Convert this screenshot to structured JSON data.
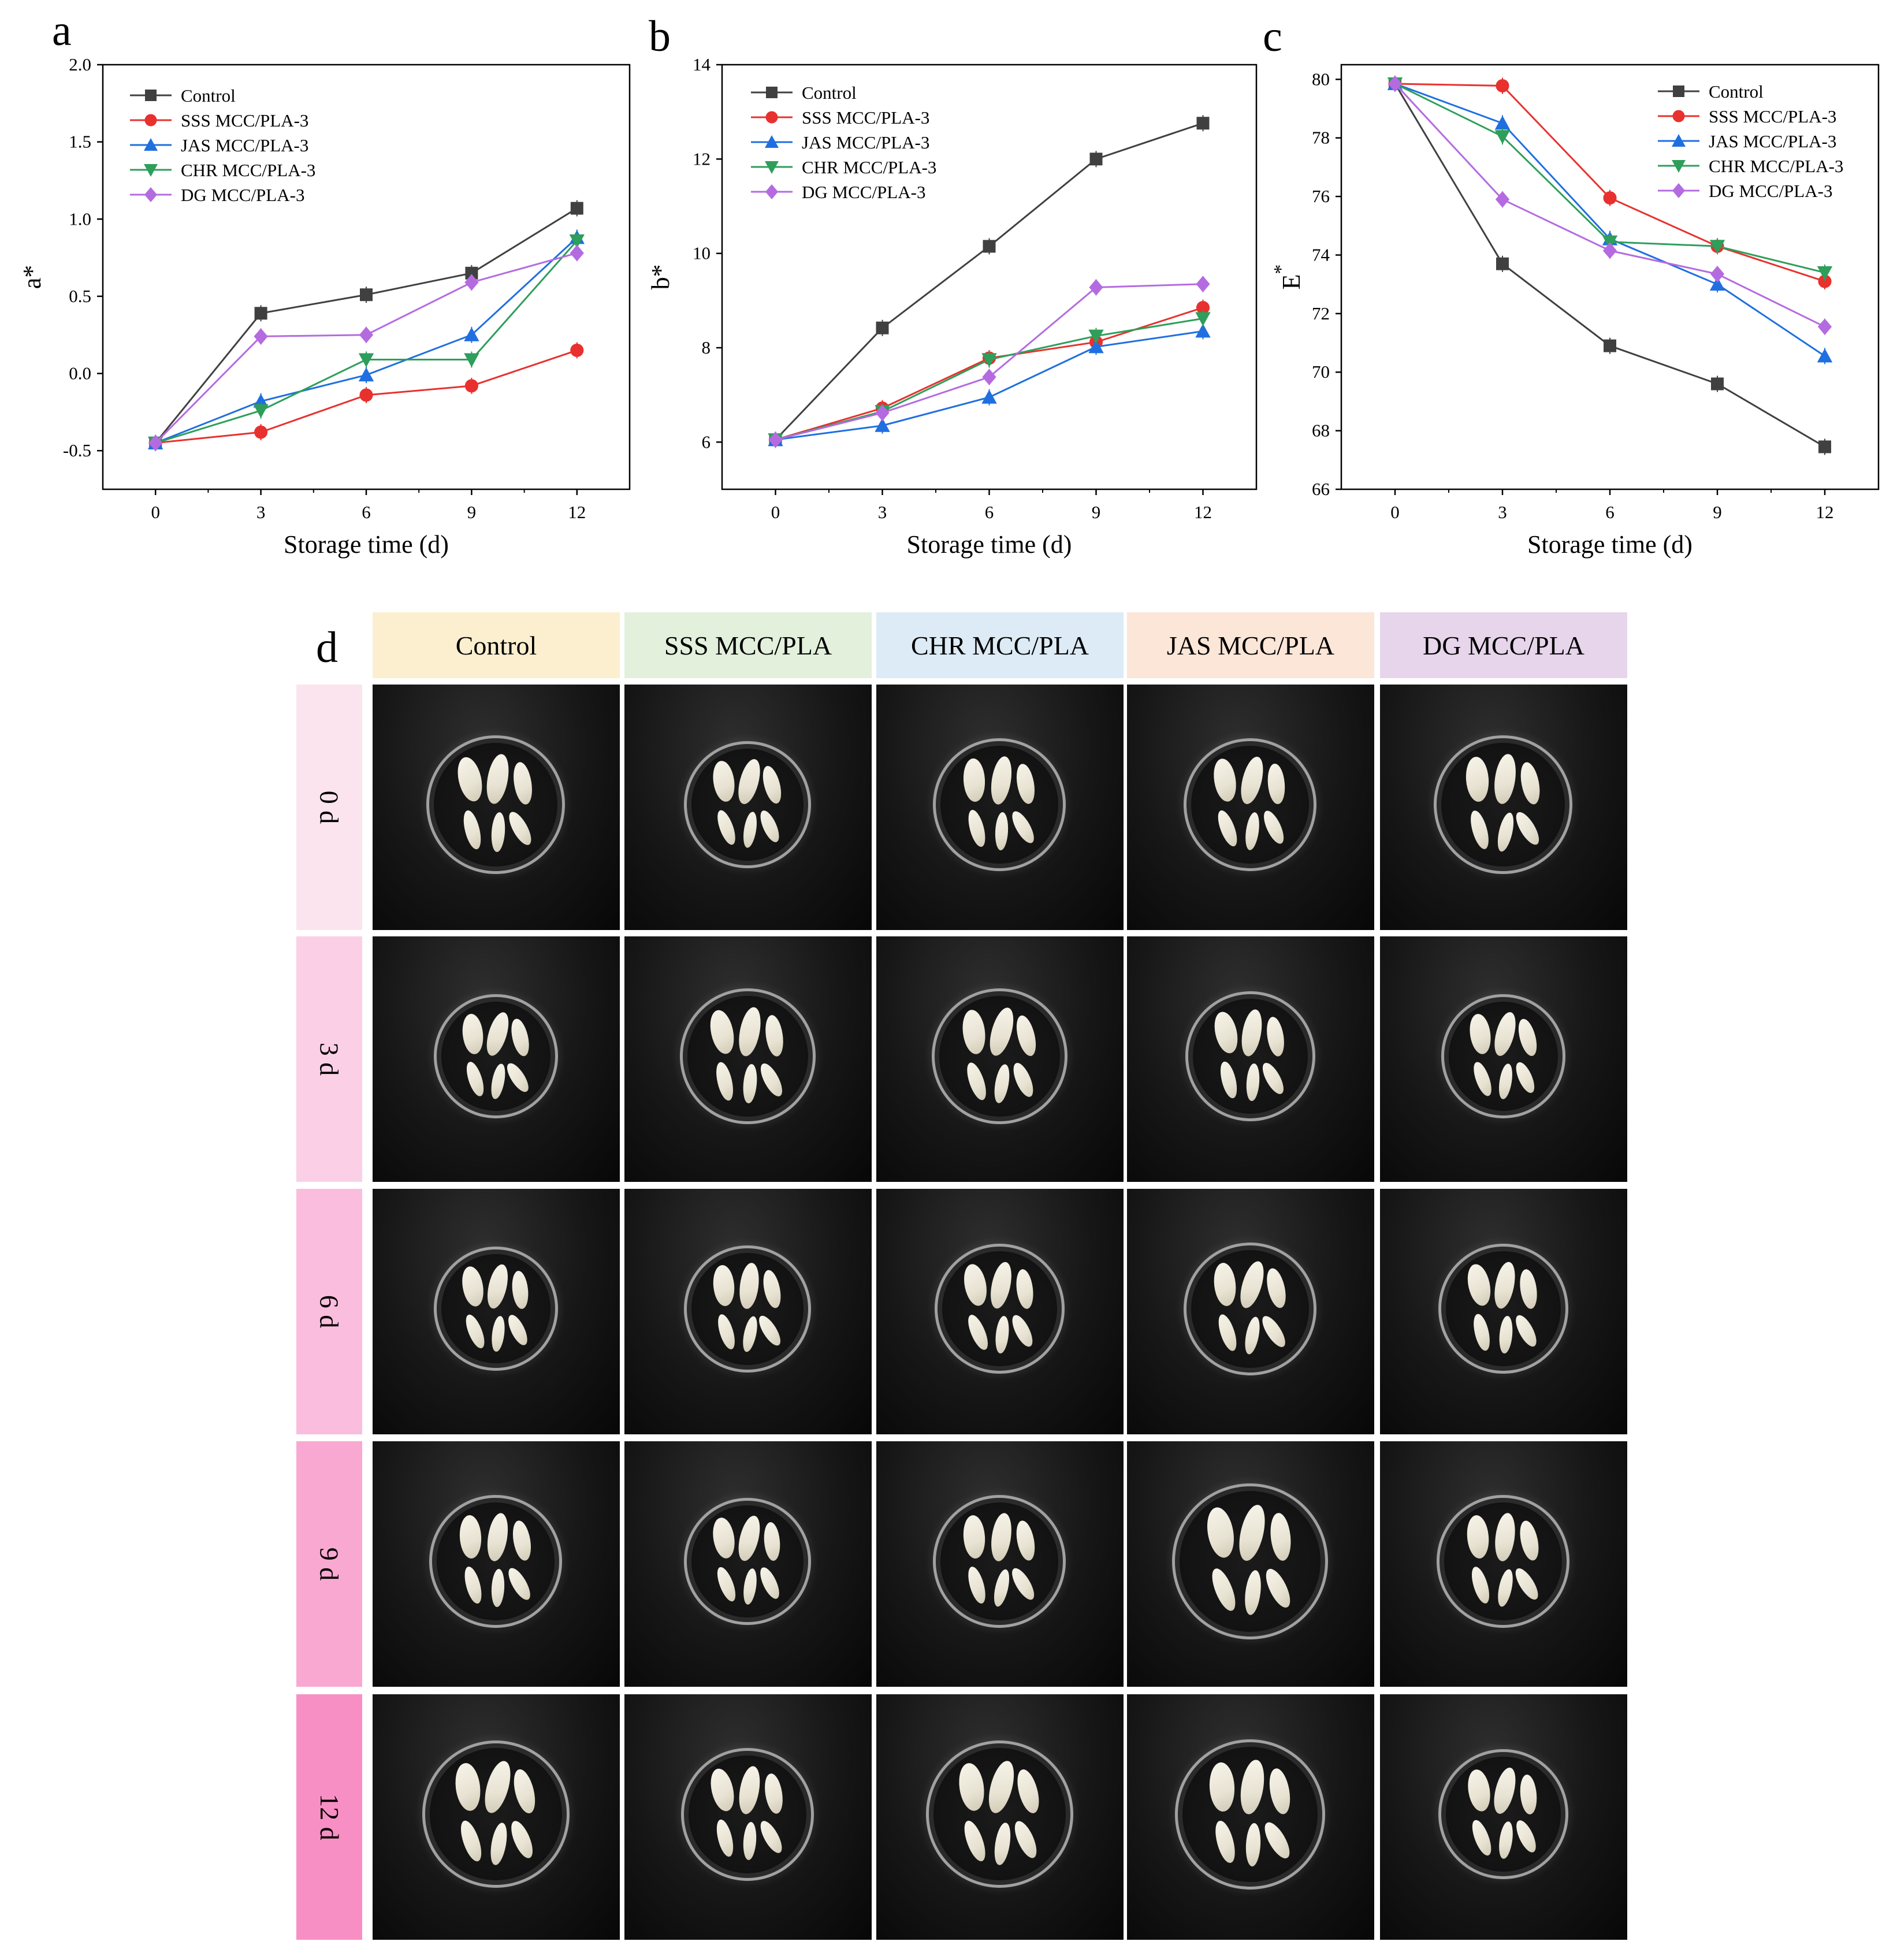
{
  "panels": {
    "a": "a",
    "b": "b",
    "c": "c",
    "d": "d"
  },
  "series_styles": [
    {
      "name": "Control",
      "color": "#404040",
      "marker": "square"
    },
    {
      "name": "SSS MCC/PLA-3",
      "color": "#e8312e",
      "marker": "circle"
    },
    {
      "name": "JAS MCC/PLA-3",
      "color": "#1f6fe0",
      "marker": "triangle-up"
    },
    {
      "name": "CHR MCC/PLA-3",
      "color": "#2e9e5b",
      "marker": "triangle-down"
    },
    {
      "name": "DG MCC/PLA-3",
      "color": "#b46be0",
      "marker": "diamond"
    }
  ],
  "chart_data": [
    {
      "type": "line",
      "panel": "a",
      "xlabel": "Storage time (d)",
      "ylabel": "a*",
      "x": [
        0,
        3,
        6,
        9,
        12
      ],
      "xlim": [
        -1.5,
        13.5
      ],
      "ylim": [
        -0.75,
        2.0
      ],
      "yticks": [
        -0.5,
        0.0,
        0.5,
        1.0,
        1.5,
        2.0
      ],
      "ytick_labels": [
        "-0.5",
        "0.0",
        "0.5",
        "1.0",
        "1.5",
        "2.0"
      ],
      "legend_position": "top-left",
      "series": [
        {
          "name": "Control",
          "values": [
            -0.45,
            0.39,
            0.51,
            0.65,
            1.07
          ]
        },
        {
          "name": "SSS MCC/PLA-3",
          "values": [
            -0.45,
            -0.38,
            -0.14,
            -0.08,
            0.15
          ]
        },
        {
          "name": "JAS MCC/PLA-3",
          "values": [
            -0.45,
            -0.18,
            -0.01,
            0.25,
            0.88
          ]
        },
        {
          "name": "CHR MCC/PLA-3",
          "values": [
            -0.45,
            -0.24,
            0.09,
            0.09,
            0.86
          ]
        },
        {
          "name": "DG MCC/PLA-3",
          "values": [
            -0.45,
            0.24,
            0.25,
            0.59,
            0.78
          ]
        }
      ]
    },
    {
      "type": "line",
      "panel": "b",
      "xlabel": "Storage time (d)",
      "ylabel": "b*",
      "x": [
        0,
        3,
        6,
        9,
        12
      ],
      "xlim": [
        -1.5,
        13.5
      ],
      "ylim": [
        5.0,
        14.0
      ],
      "yticks": [
        6,
        8,
        10,
        12,
        14
      ],
      "ytick_labels": [
        "6",
        "8",
        "10",
        "12",
        "14"
      ],
      "legend_position": "top-left",
      "series": [
        {
          "name": "Control",
          "values": [
            6.05,
            8.42,
            10.15,
            12.0,
            12.76
          ]
        },
        {
          "name": "SSS MCC/PLA-3",
          "values": [
            6.05,
            6.72,
            7.78,
            8.12,
            8.85
          ]
        },
        {
          "name": "JAS MCC/PLA-3",
          "values": [
            6.05,
            6.35,
            6.95,
            8.02,
            8.35
          ]
        },
        {
          "name": "CHR MCC/PLA-3",
          "values": [
            6.05,
            6.65,
            7.75,
            8.25,
            8.62
          ]
        },
        {
          "name": "DG MCC/PLA-3",
          "values": [
            6.05,
            6.62,
            7.38,
            9.28,
            9.35
          ]
        }
      ]
    },
    {
      "type": "line",
      "panel": "c",
      "xlabel": "Storage time (d)",
      "ylabel": "E",
      "ylabel_superscript": "*",
      "x": [
        0,
        3,
        6,
        9,
        12
      ],
      "xlim": [
        -1.5,
        13.5
      ],
      "ylim": [
        66.0,
        80.5
      ],
      "yticks": [
        66,
        68,
        70,
        72,
        74,
        76,
        78,
        80
      ],
      "ytick_labels": [
        "66",
        "68",
        "70",
        "72",
        "74",
        "76",
        "78",
        "80"
      ],
      "legend_position": "top-right",
      "series": [
        {
          "name": "Control",
          "values": [
            79.85,
            73.7,
            70.9,
            69.6,
            67.45
          ]
        },
        {
          "name": "SSS MCC/PLA-3",
          "values": [
            79.85,
            79.78,
            75.95,
            74.3,
            73.1
          ]
        },
        {
          "name": "JAS MCC/PLA-3",
          "values": [
            79.85,
            78.5,
            74.55,
            73.0,
            70.55
          ]
        },
        {
          "name": "CHR MCC/PLA-3",
          "values": [
            79.85,
            78.05,
            74.45,
            74.3,
            73.4
          ]
        },
        {
          "name": "DG MCC/PLA-3",
          "values": [
            79.85,
            75.9,
            74.15,
            73.35,
            71.55
          ]
        }
      ]
    }
  ],
  "photo_grid": {
    "columns": [
      "Control",
      "SSS MCC/PLA",
      "CHR MCC/PLA",
      "JAS MCC/PLA",
      "DG MCC/PLA"
    ],
    "column_colors": [
      "#fbefd0",
      "#e3f0dc",
      "#dcebf5",
      "#fbe6d8",
      "#e7d5ec"
    ],
    "rows": [
      "0 d",
      "3 d",
      "6 d",
      "9 d",
      "12 d"
    ],
    "row_colors": [
      "#fce4ef",
      "#fbd0e6",
      "#fbbddd",
      "#f9a8d1",
      "#f88fc4"
    ]
  }
}
